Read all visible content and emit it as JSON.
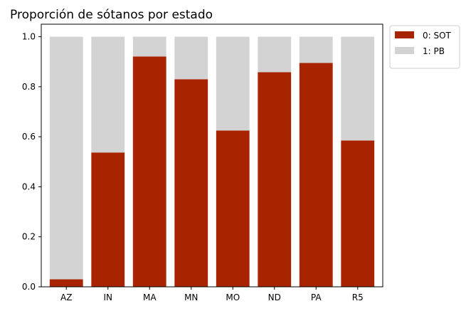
{
  "chart_data": {
    "type": "bar",
    "stacked": true,
    "title": "Proporción de sótanos por estado",
    "xlabel": "",
    "ylabel": "",
    "categories": [
      "AZ",
      "IN",
      "MA",
      "MN",
      "MO",
      "ND",
      "PA",
      "R5"
    ],
    "series": [
      {
        "name": "0: SOT",
        "color": "#a82400",
        "values": [
          0.03,
          0.537,
          0.921,
          0.83,
          0.625,
          0.858,
          0.895,
          0.585
        ]
      },
      {
        "name": "1: PB",
        "color": "#d3d3d3",
        "values": [
          0.97,
          0.463,
          0.079,
          0.17,
          0.375,
          0.142,
          0.105,
          0.415
        ]
      }
    ],
    "ylim": [
      0,
      1.05
    ],
    "yticks": [
      0.0,
      0.2,
      0.4,
      0.6,
      0.8,
      1.0
    ],
    "ytick_labels": [
      "0.0",
      "0.2",
      "0.4",
      "0.6",
      "0.8",
      "1.0"
    ],
    "grid": false,
    "legend_position": "outside-top-right"
  }
}
